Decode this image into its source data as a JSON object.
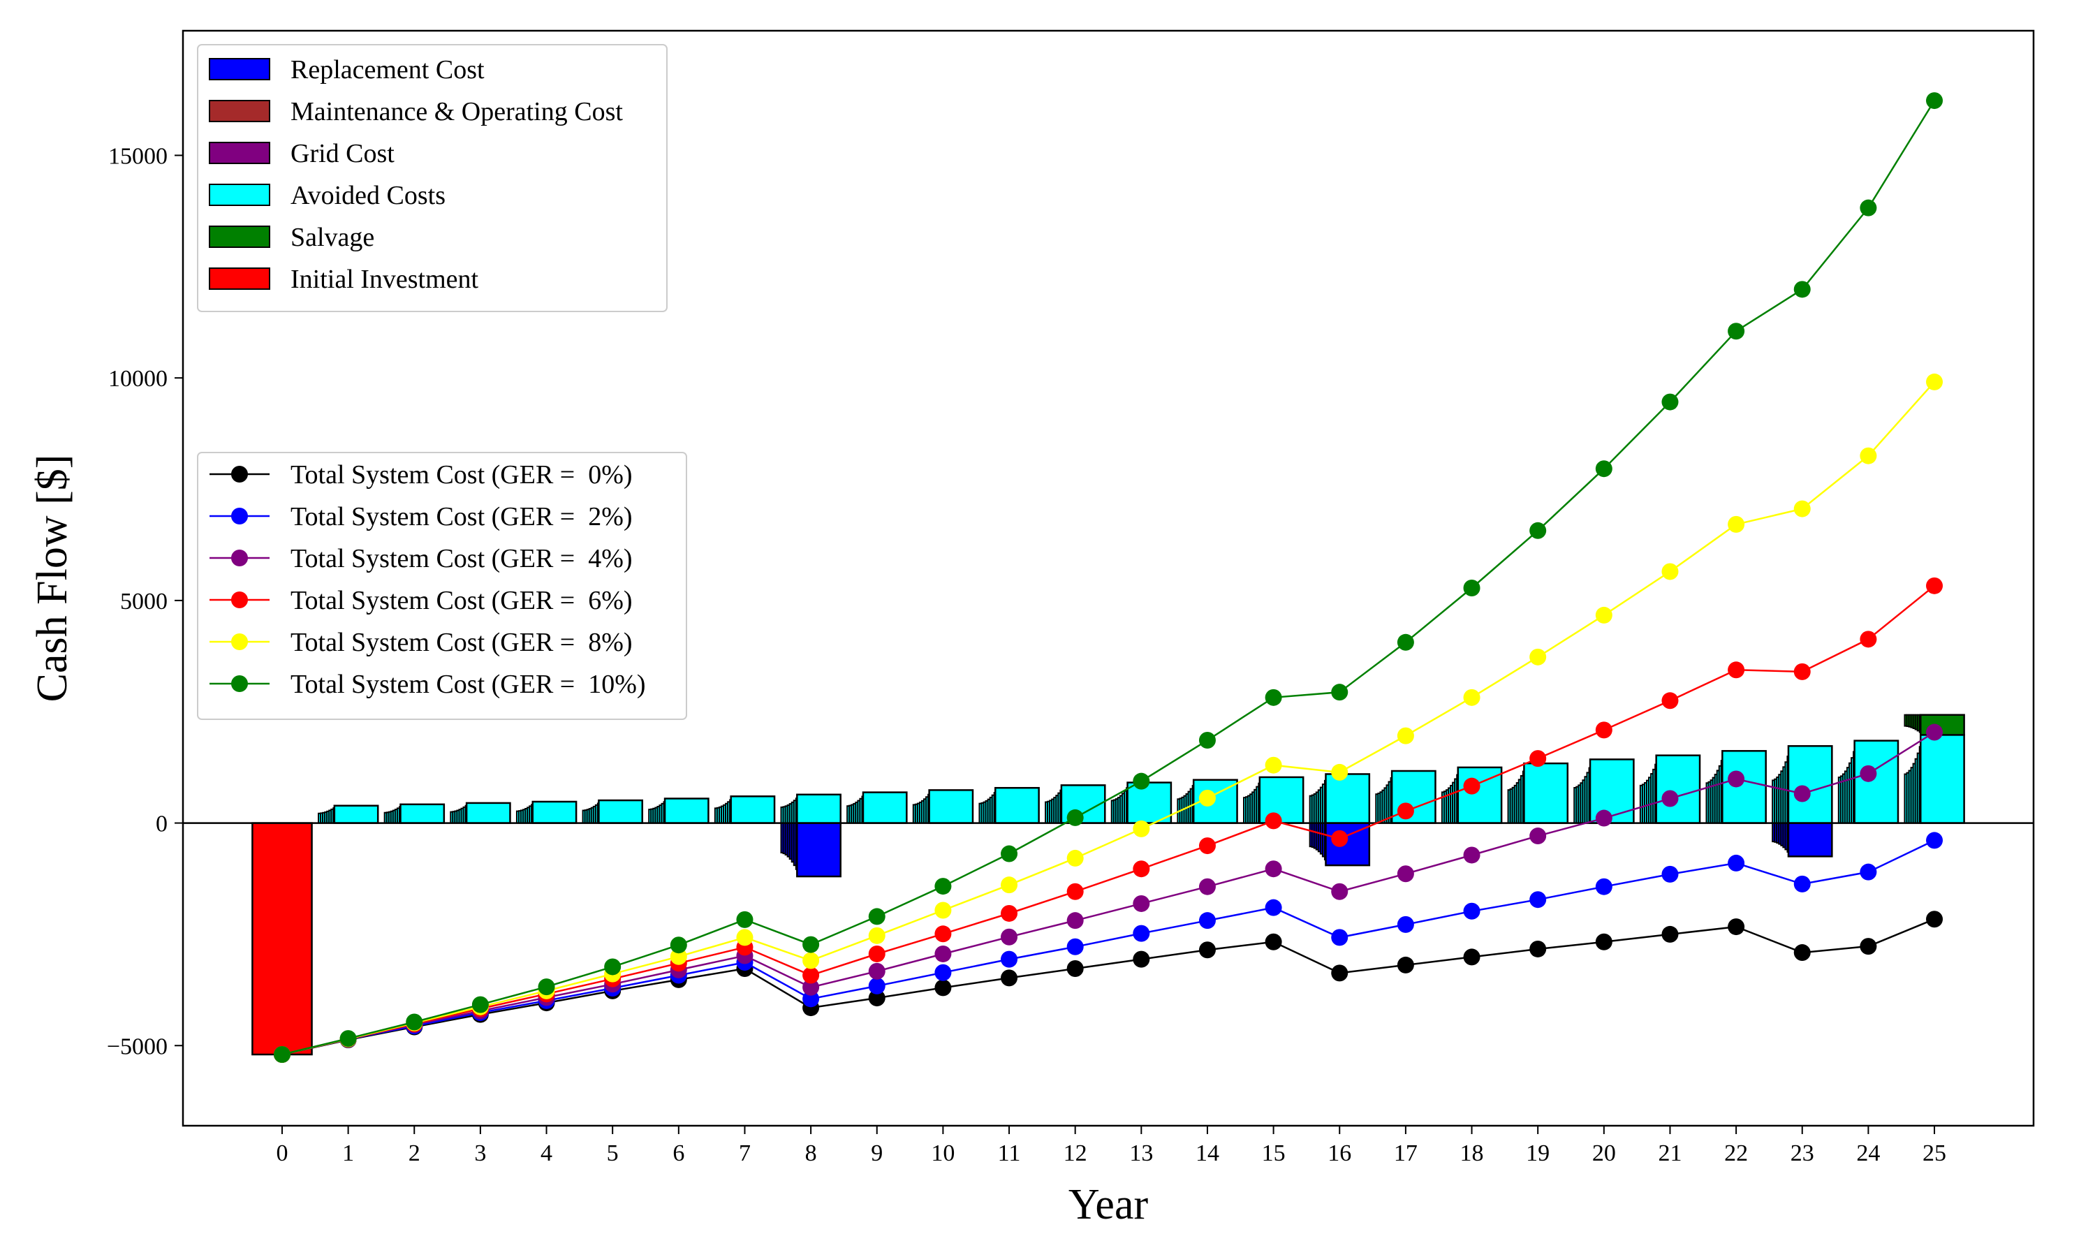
{
  "chart_data": {
    "type": "bar",
    "xlabel": "Year",
    "ylabel": "Cash Flow [$]",
    "x": [
      0,
      1,
      2,
      3,
      4,
      5,
      6,
      7,
      8,
      9,
      10,
      11,
      12,
      13,
      14,
      15,
      16,
      17,
      18,
      19,
      20,
      21,
      22,
      23,
      24,
      25
    ],
    "xlim": [
      -1.5,
      26.5
    ],
    "ylim": [
      -6800,
      17800
    ],
    "yticks": [
      -5000,
      0,
      5000,
      10000,
      15000
    ],
    "grid": false,
    "bar_series": [
      {
        "name": "Replacement Cost",
        "color": "#0000ff",
        "values": [
          0,
          0,
          0,
          0,
          0,
          0,
          0,
          0,
          -1200,
          0,
          0,
          0,
          0,
          0,
          0,
          0,
          -950,
          0,
          0,
          0,
          0,
          0,
          0,
          -750,
          0,
          0
        ]
      },
      {
        "name": "Maintenance & Operating Cost",
        "color": "#a52a2a",
        "values": [
          0,
          0,
          0,
          0,
          0,
          0,
          0,
          0,
          0,
          0,
          0,
          0,
          0,
          0,
          0,
          0,
          0,
          0,
          0,
          0,
          0,
          0,
          0,
          0,
          0,
          0
        ]
      },
      {
        "name": "Grid Cost",
        "color": "#800080",
        "values": [
          0,
          0,
          0,
          0,
          0,
          0,
          0,
          0,
          0,
          0,
          0,
          0,
          0,
          0,
          0,
          0,
          0,
          0,
          0,
          0,
          0,
          0,
          0,
          0,
          0,
          0
        ]
      },
      {
        "name": "Avoided Costs",
        "color": "#00ffff",
        "values": [
          0,
          390,
          420,
          450,
          480,
          510,
          550,
          600,
          640,
          690,
          740,
          790,
          850,
          910,
          970,
          1030,
          1100,
          1170,
          1250,
          1340,
          1430,
          1520,
          1620,
          1730,
          1850,
          1980
        ]
      },
      {
        "name": "Salvage",
        "color": "#008000",
        "values": [
          0,
          0,
          0,
          0,
          0,
          0,
          0,
          0,
          0,
          0,
          0,
          0,
          0,
          0,
          0,
          0,
          0,
          0,
          0,
          0,
          0,
          0,
          0,
          0,
          0,
          450
        ]
      },
      {
        "name": "Initial Investment",
        "color": "#ff0000",
        "values": [
          -5200,
          0,
          0,
          0,
          0,
          0,
          0,
          0,
          0,
          0,
          0,
          0,
          0,
          0,
          0,
          0,
          0,
          0,
          0,
          0,
          0,
          0,
          0,
          0,
          0,
          0
        ]
      }
    ],
    "line_series": [
      {
        "name": "Total System Cost (GER =  0%)",
        "color": "#000000",
        "values": [
          -5200,
          -4870,
          -4580,
          -4300,
          -4040,
          -3770,
          -3520,
          -3270,
          -4150,
          -3930,
          -3700,
          -3480,
          -3270,
          -3060,
          -2850,
          -2670,
          -3370,
          -3190,
          -3010,
          -2830,
          -2670,
          -2500,
          -2330,
          -2910,
          -2770,
          -2160
        ]
      },
      {
        "name": "Total System Cost (GER =  2%)",
        "color": "#0000ff",
        "values": [
          -5200,
          -4860,
          -4560,
          -4260,
          -3990,
          -3710,
          -3420,
          -3130,
          -3950,
          -3660,
          -3360,
          -3060,
          -2780,
          -2480,
          -2190,
          -1900,
          -2570,
          -2280,
          -1980,
          -1720,
          -1430,
          -1150,
          -900,
          -1370,
          -1100,
          -390
        ]
      },
      {
        "name": "Total System Cost (GER =  4%)",
        "color": "#800080",
        "values": [
          -5200,
          -4860,
          -4530,
          -4220,
          -3920,
          -3620,
          -3300,
          -2980,
          -3690,
          -3330,
          -2940,
          -2560,
          -2190,
          -1810,
          -1430,
          -1030,
          -1540,
          -1140,
          -720,
          -290,
          110,
          550,
          990,
          660,
          1110,
          2040
        ]
      },
      {
        "name": "Total System Cost (GER =  6%)",
        "color": "#ff0000",
        "values": [
          -5200,
          -4850,
          -4510,
          -4170,
          -3840,
          -3500,
          -3150,
          -2790,
          -3420,
          -2940,
          -2490,
          -2030,
          -1540,
          -1030,
          -510,
          50,
          -350,
          270,
          830,
          1450,
          2090,
          2750,
          3440,
          3400,
          4130,
          5330
        ]
      },
      {
        "name": "Total System Cost (GER =  8%)",
        "color": "#ffff00",
        "values": [
          -5200,
          -4850,
          -4490,
          -4130,
          -3770,
          -3390,
          -3000,
          -2570,
          -3090,
          -2530,
          -1960,
          -1390,
          -790,
          -130,
          560,
          1300,
          1140,
          1960,
          2820,
          3730,
          4670,
          5650,
          6710,
          7060,
          8250,
          9910
        ]
      },
      {
        "name": "Total System Cost (GER =  10%)",
        "color": "#008000",
        "values": [
          -5200,
          -4840,
          -4470,
          -4080,
          -3680,
          -3230,
          -2740,
          -2170,
          -2730,
          -2100,
          -1420,
          -690,
          120,
          940,
          1860,
          2820,
          2940,
          4060,
          5280,
          6570,
          7960,
          9460,
          11050,
          11990,
          13820,
          16230
        ]
      }
    ]
  }
}
